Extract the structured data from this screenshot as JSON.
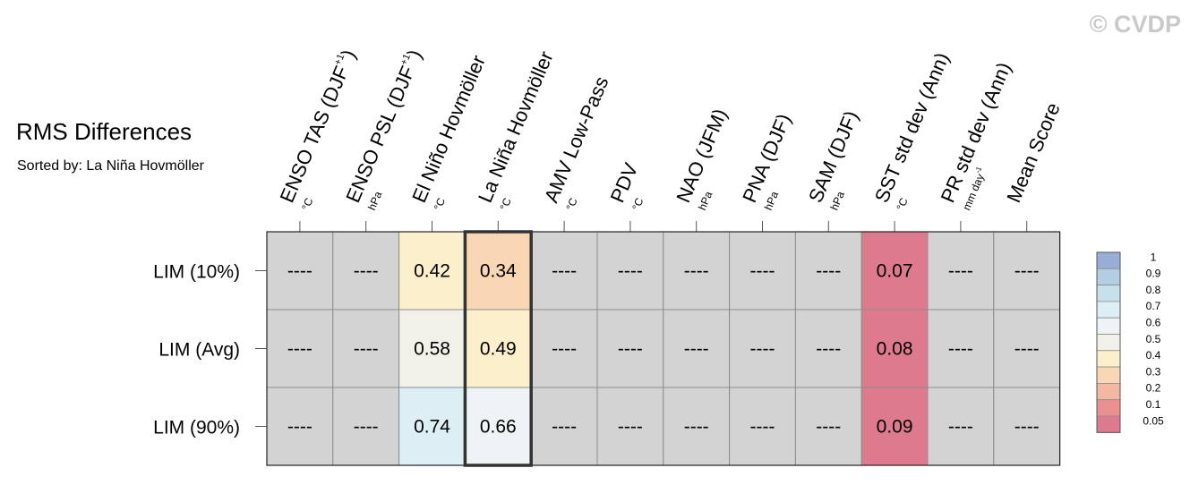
{
  "watermark": "© CVDP",
  "chart_data": {
    "type": "heatmap",
    "title": "RMS Differences",
    "subtitle": "Sorted by: La Niña Hovmöller",
    "sorted_by_column": 3,
    "rows": [
      "LIM (10%)",
      "LIM (Avg)",
      "LIM (90%)"
    ],
    "columns": [
      {
        "label": "ENSO TAS (DJF",
        "superscript": "+1",
        "close": ")",
        "unit": "°C"
      },
      {
        "label": "ENSO PSL (DJF",
        "superscript": "+1",
        "close": ")",
        "unit": "hPa"
      },
      {
        "label": "El Niño Hovmöller",
        "superscript": "",
        "close": "",
        "unit": "°C"
      },
      {
        "label": "La Niña Hovmöller",
        "superscript": "",
        "close": "",
        "unit": "°C"
      },
      {
        "label": "AMV Low-Pass",
        "superscript": "",
        "close": "",
        "unit": "°C"
      },
      {
        "label": "PDV",
        "superscript": "",
        "close": "",
        "unit": "°C"
      },
      {
        "label": "NAO (JFM)",
        "superscript": "",
        "close": "",
        "unit": "hPa"
      },
      {
        "label": "PNA (DJF)",
        "superscript": "",
        "close": "",
        "unit": "hPa"
      },
      {
        "label": "SAM (DJF)",
        "superscript": "",
        "close": "",
        "unit": "hPa"
      },
      {
        "label": "SST std dev (Ann)",
        "superscript": "",
        "close": "",
        "unit": "°C"
      },
      {
        "label": "PR std dev (Ann)",
        "superscript": "",
        "close": "",
        "unit": "mm day",
        "unit_superscript": "-1"
      },
      {
        "label": "Mean Score",
        "superscript": "",
        "close": "",
        "unit": ""
      }
    ],
    "values": [
      [
        null,
        null,
        0.42,
        0.34,
        null,
        null,
        null,
        null,
        null,
        0.07,
        null,
        null
      ],
      [
        null,
        null,
        0.58,
        0.49,
        null,
        null,
        null,
        null,
        null,
        0.08,
        null,
        null
      ],
      [
        null,
        null,
        0.74,
        0.66,
        null,
        null,
        null,
        null,
        null,
        0.09,
        null,
        null
      ]
    ],
    "missing_label": "----",
    "missing_color": "#d3d3d3",
    "colorbar": {
      "labels": [
        "1",
        "0.9",
        "0.8",
        "0.7",
        "0.6",
        "0.5",
        "0.4",
        "0.3",
        "0.2",
        "0.1",
        "0.05"
      ],
      "colors": [
        "#98aed6",
        "#b3cde3",
        "#c6e0ec",
        "#deeef5",
        "#eef3f6",
        "#f2f1e9",
        "#fcefcc",
        "#f9d7b4",
        "#f3b8a2",
        "#ea9090",
        "#de7a8e"
      ]
    },
    "legend_position": "right"
  }
}
